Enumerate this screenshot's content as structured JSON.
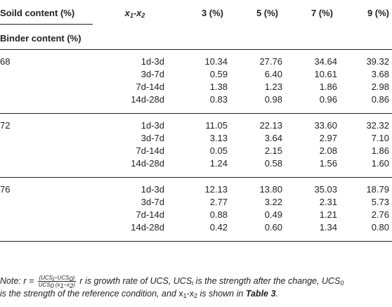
{
  "header": {
    "col_soild": "Soild content (%)",
    "col_binder": "Binder content (%)",
    "col_x": "x",
    "col_x_sub1": "1",
    "col_x_sep": "-x",
    "col_x_sub2": "2",
    "col_3": "3 (%)",
    "col_5": "5 (%)",
    "col_7": "7 (%)",
    "col_9": "9 (%)"
  },
  "groups": [
    {
      "binder": "68",
      "rows": [
        {
          "period": "1d-3d",
          "v3": "10.34",
          "v5": "27.76",
          "v7": "34.64",
          "v9": "39.32"
        },
        {
          "period": "3d-7d",
          "v3": "0.59",
          "v5": "6.40",
          "v7": "10.61",
          "v9": "3.68"
        },
        {
          "period": "7d-14d",
          "v3": "1.38",
          "v5": "1.23",
          "v7": "1.86",
          "v9": "2.98"
        },
        {
          "period": "14d-28d",
          "v3": "0.83",
          "v5": "0.98",
          "v7": "0.96",
          "v9": "0.86"
        }
      ]
    },
    {
      "binder": "72",
      "rows": [
        {
          "period": "1d-3d",
          "v3": "11.05",
          "v5": "22.13",
          "v7": "33.60",
          "v9": "32.32"
        },
        {
          "period": "3d-7d",
          "v3": "3.13",
          "v5": "3.64",
          "v7": "2.97",
          "v9": "7.10"
        },
        {
          "period": "7d-14d",
          "v3": "0.05",
          "v5": "2.15",
          "v7": "2.08",
          "v9": "1.86"
        },
        {
          "period": "14d-28d",
          "v3": "1.24",
          "v5": "0.58",
          "v7": "1.56",
          "v9": "1.60"
        }
      ]
    },
    {
      "binder": "76",
      "rows": [
        {
          "period": "1d-3d",
          "v3": "12.13",
          "v5": "13.80",
          "v7": "35.03",
          "v9": "18.79"
        },
        {
          "period": "3d-7d",
          "v3": "2.77",
          "v5": "3.22",
          "v7": "2.31",
          "v9": "5.73"
        },
        {
          "period": "7d-14d",
          "v3": "0.88",
          "v5": "0.49",
          "v7": "1.21",
          "v9": "2.76"
        },
        {
          "period": "14d-28d",
          "v3": "0.42",
          "v5": "0.60",
          "v7": "1.34",
          "v9": "0.80"
        }
      ]
    }
  ],
  "note": {
    "prefix": "Note: r = ",
    "frac_num": "(UCS",
    "frac_num_sub1": "i",
    "frac_num_mid": "−UCS",
    "frac_num_sub2": "0",
    "frac_num_end": ")",
    "frac_den": "UCS",
    "frac_den_sub1": "0",
    "frac_den_mid": " (x",
    "frac_den_sub2": "1",
    "frac_den_mid2": "−x",
    "frac_den_sub3": "2",
    "frac_den_end": ")",
    "line1_a": " r is growth rate of UCS, UCS",
    "line1_sub1": "i",
    "line1_b": " is the strength after the change, UCS",
    "line1_sub2": "0",
    "line2_a": "is the strength of the reference condition, and ",
    "line2_x": "x",
    "line2_sub1": "1",
    "line2_xsep": "-x",
    "line2_sub2": "2",
    "line2_b": " is shown in ",
    "line2_ref": "Table 3",
    "line2_end": "."
  }
}
